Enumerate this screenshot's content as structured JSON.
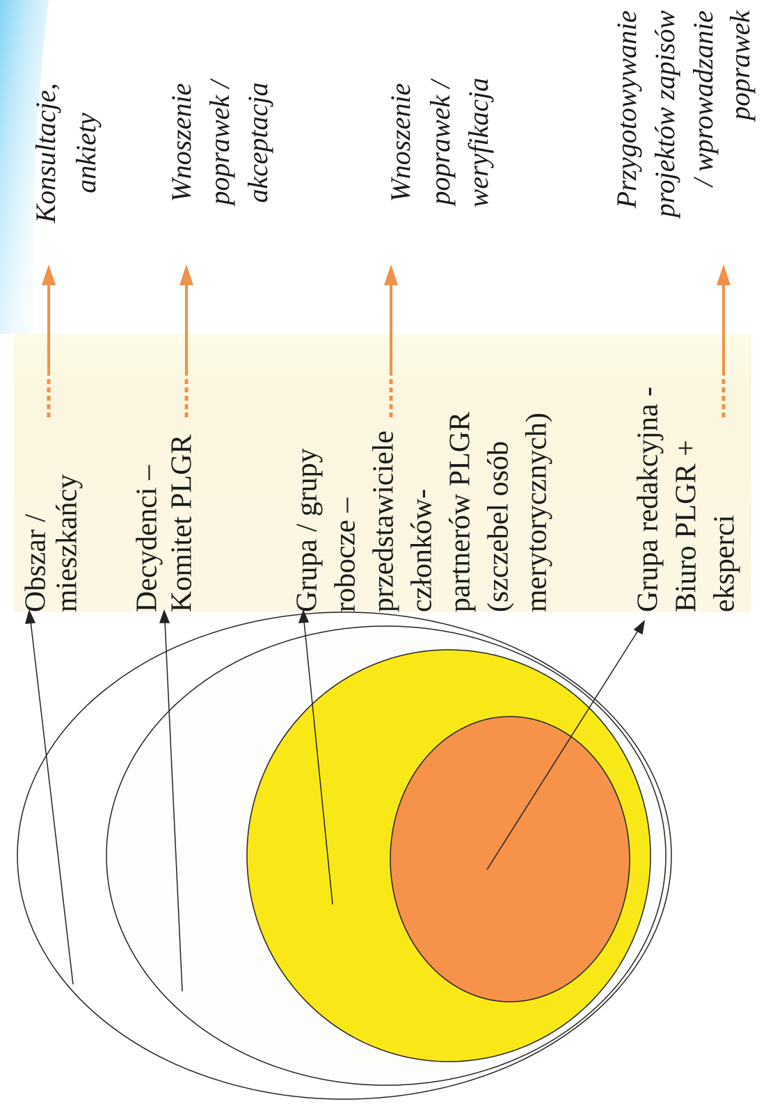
{
  "levels": [
    {
      "label": [
        "Obszar /",
        "mieszkańcy"
      ],
      "action": [
        "Konsultacje,",
        "ankiety"
      ]
    },
    {
      "label": [
        "Decydenci –",
        "Komitet PLGR"
      ],
      "action": [
        "Wnoszenie",
        "poprawek /",
        "akceptacja"
      ]
    },
    {
      "label": [
        "Grupa / grupy",
        "robocze –",
        "przedstawiciele",
        "członków-",
        "partnerów PLGR",
        "(szczebel osób",
        "merytorycznych)"
      ],
      "action": [
        "Wnoszenie",
        "poprawek /",
        "weryfikacja"
      ]
    },
    {
      "label": [
        "Grupa redakcyjna  -",
        "Biuro PLGR +",
        "eksperci"
      ],
      "action": [
        "Przygotowywanie",
        "projektów zapisów",
        "/ wprowadzanie",
        "poprawek"
      ]
    }
  ]
}
